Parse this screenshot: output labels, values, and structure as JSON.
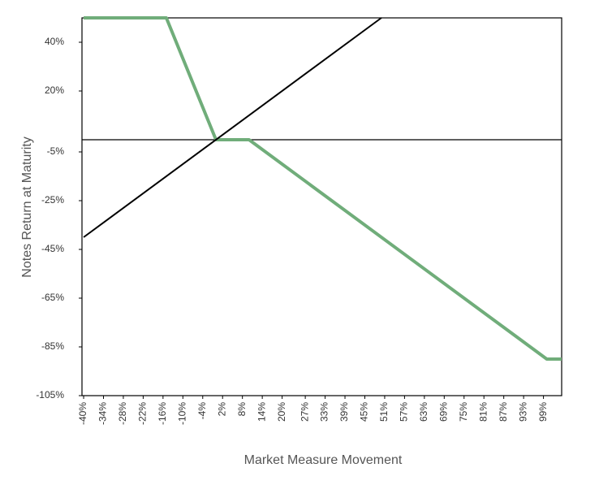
{
  "chart_data": {
    "type": "line",
    "y_label": "Notes Return at Maturity",
    "x_label": "Market Measure Movement",
    "xlim": [
      -40.5,
      104.5
    ],
    "ylim": [
      -105,
      50
    ],
    "xticks": [
      {
        "value": -40,
        "label": "-40%"
      },
      {
        "value": -34,
        "label": "-34%"
      },
      {
        "value": -28,
        "label": "-28%"
      },
      {
        "value": -22,
        "label": "-22%"
      },
      {
        "value": -16,
        "label": "-16%"
      },
      {
        "value": -10,
        "label": "-10%"
      },
      {
        "value": -4,
        "label": "-4%"
      },
      {
        "value": 2,
        "label": "2%"
      },
      {
        "value": 8,
        "label": "8%"
      },
      {
        "value": 14,
        "label": "14%"
      },
      {
        "value": 20,
        "label": "20%"
      },
      {
        "value": 27,
        "label": "27%"
      },
      {
        "value": 33,
        "label": "33%"
      },
      {
        "value": 39,
        "label": "39%"
      },
      {
        "value": 45,
        "label": "45%"
      },
      {
        "value": 51,
        "label": "51%"
      },
      {
        "value": 57,
        "label": "57%"
      },
      {
        "value": 63,
        "label": "63%"
      },
      {
        "value": 69,
        "label": "69%"
      },
      {
        "value": 75,
        "label": "75%"
      },
      {
        "value": 81,
        "label": "81%"
      },
      {
        "value": 87,
        "label": "87%"
      },
      {
        "value": 93,
        "label": "93%"
      },
      {
        "value": 99,
        "label": "99%"
      }
    ],
    "yticks": [
      {
        "value": 40,
        "label": "40%"
      },
      {
        "value": 20,
        "label": "20%"
      },
      {
        "value": -5,
        "label": "-5%"
      },
      {
        "value": -25,
        "label": "-25%"
      },
      {
        "value": -45,
        "label": "-45%"
      },
      {
        "value": -65,
        "label": "-65%"
      },
      {
        "value": -85,
        "label": "-85%"
      },
      {
        "value": -105,
        "label": "-105%"
      }
    ],
    "series": [
      {
        "color": "#70ad7a",
        "width": 4,
        "x": [
          -40,
          -15,
          0,
          10,
          100,
          104.5
        ],
        "values": [
          50,
          50,
          0,
          0,
          -90,
          -90
        ]
      },
      {
        "color": "#000000",
        "width": 2,
        "x": [
          -40,
          50
        ],
        "values": [
          -40,
          50
        ]
      }
    ]
  }
}
